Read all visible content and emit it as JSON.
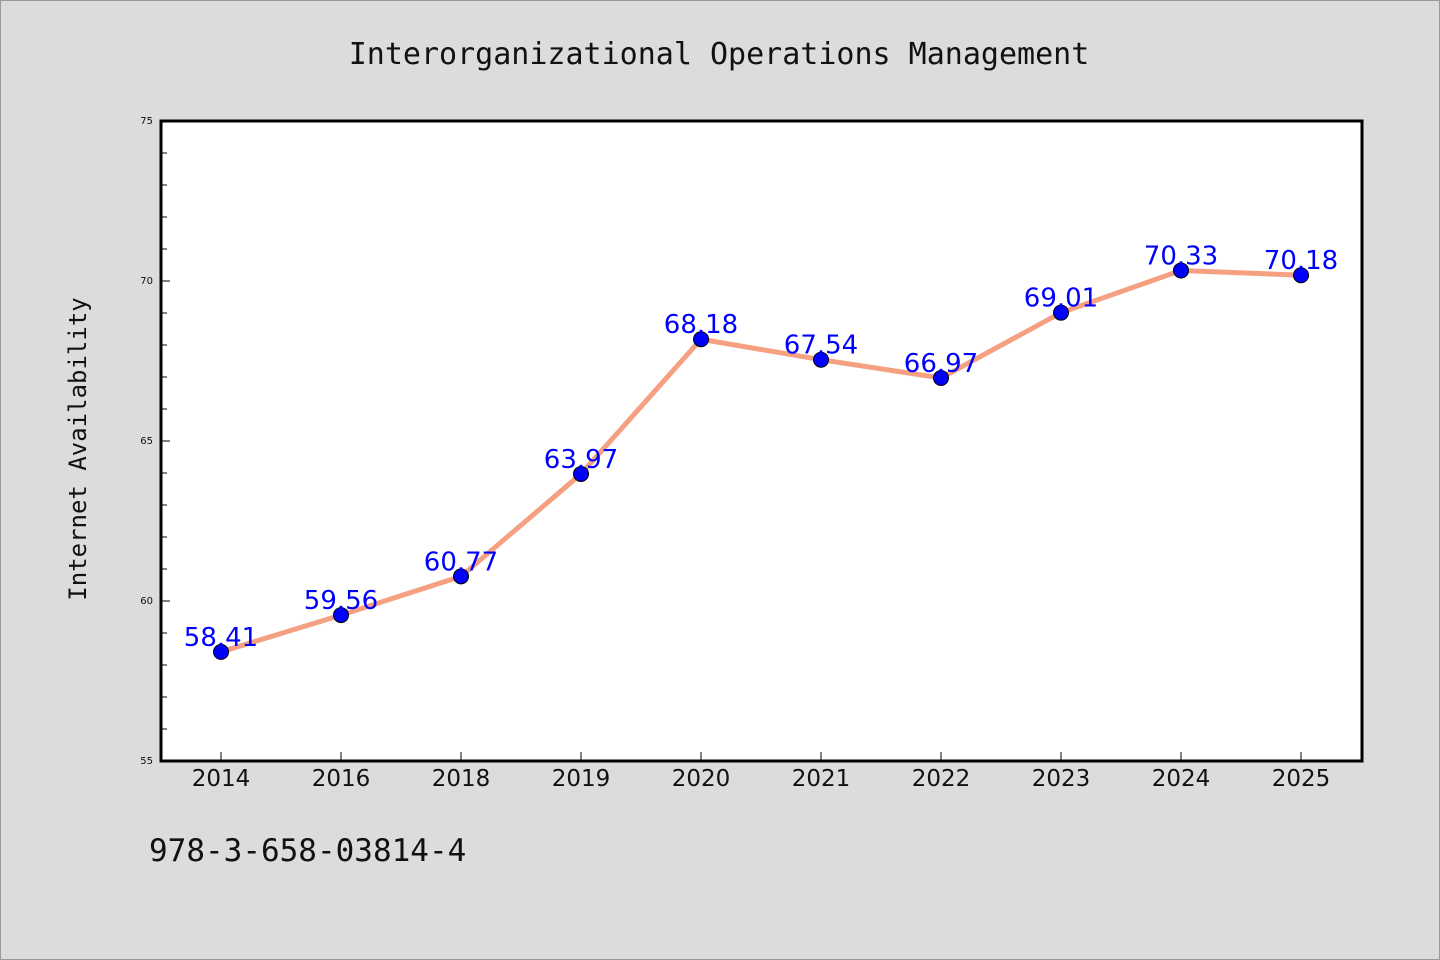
{
  "chart_data": {
    "type": "line",
    "title": "Interorganizational Operations Management",
    "ylabel": "Internet Availability",
    "xlabel": "",
    "categories": [
      "2014",
      "2016",
      "2018",
      "2019",
      "2020",
      "2021",
      "2022",
      "2023",
      "2024",
      "2025"
    ],
    "series": [
      {
        "values": [
          58.41,
          59.56,
          60.77,
          63.97,
          68.18,
          67.54,
          66.97,
          69.01,
          70.33,
          70.18
        ],
        "labels": [
          "58.41",
          "59.56",
          "60.77",
          "63.97",
          "68.18",
          "67.54",
          "66.97",
          "69.01",
          "70.33",
          "70.18"
        ]
      }
    ],
    "ylim": [
      55,
      75
    ],
    "yticks": [
      "55",
      "60",
      "65",
      "70",
      "75"
    ],
    "grid": false,
    "legend": "none",
    "colors": {
      "line": "#f4a081",
      "marker": "#0000ff",
      "label": "#0000ff",
      "background": "#dcdcdc",
      "plot_background": "#ffffff"
    }
  },
  "footer": {
    "code": "978-3-658-03814-4"
  }
}
